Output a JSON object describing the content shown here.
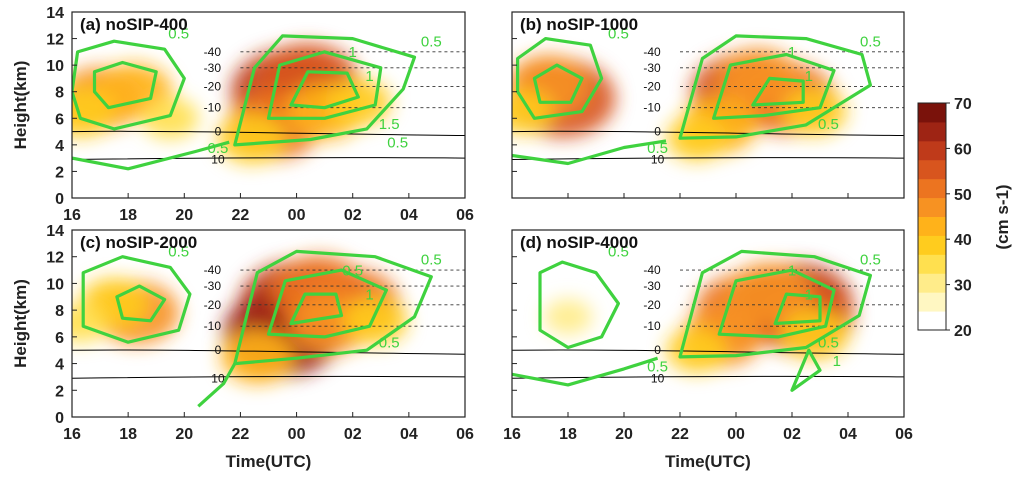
{
  "figure": {
    "colorbar": {
      "ticks": [
        "70",
        "60",
        "50",
        "40",
        "30",
        "20"
      ],
      "unit_label": "(cm s-1)",
      "colors": [
        "#ffffff",
        "#fff7c2",
        "#ffec8a",
        "#ffe04f",
        "#ffcc1e",
        "#ffb21a",
        "#f79222",
        "#ec7420",
        "#d8551e",
        "#bf3a1a",
        "#9e2414",
        "#7a120b"
      ]
    },
    "contour_color": "#3fd23f",
    "temperature_line_color": "#000000"
  },
  "chart_data": [
    {
      "type": "heatmap",
      "title": "(a) noSIP-400",
      "xlabel": "",
      "ylabel": "Height(km)",
      "xticks": [
        "16",
        "18",
        "20",
        "22",
        "00",
        "02",
        "04",
        "06"
      ],
      "yticks": [
        "0",
        "2",
        "4",
        "6",
        "8",
        "10",
        "12",
        "14"
      ],
      "ylim": [
        0,
        14
      ],
      "temperature_labels": [
        "-40",
        "-30",
        "-20",
        "-10",
        "0",
        "10"
      ],
      "contour_labels": [
        "0.5",
        "0.5",
        "1",
        "1",
        "1.5",
        "0.5",
        "0.5"
      ],
      "blobs": [
        {
          "x": 17.0,
          "y": 7.5,
          "v": 48
        },
        {
          "x": 18.2,
          "y": 8.0,
          "v": 44
        },
        {
          "x": 16.3,
          "y": 6.5,
          "v": 40
        },
        {
          "x": 19.5,
          "y": 6.0,
          "v": 34
        },
        {
          "x": 23.7,
          "y": 8.0,
          "v": 62
        },
        {
          "x": 24.4,
          "y": 8.8,
          "v": 56
        },
        {
          "x": 23.2,
          "y": 5.5,
          "v": 52
        },
        {
          "x": 25.0,
          "y": 6.5,
          "v": 44
        },
        {
          "x": 26.2,
          "y": 7.2,
          "v": 38
        },
        {
          "x": 22.4,
          "y": 4.5,
          "v": 40
        }
      ]
    },
    {
      "type": "heatmap",
      "title": "(b) noSIP-1000",
      "xlabel": "",
      "ylabel": "",
      "xticks": [],
      "yticks": [],
      "ylim": [
        0,
        14
      ],
      "temperature_labels": [
        "-40",
        "-30",
        "-20",
        "-10",
        "0",
        "10"
      ],
      "contour_labels": [
        "0.5",
        "0.5",
        "1",
        "1",
        "0.5",
        "0.5"
      ],
      "blobs": [
        {
          "x": 17.8,
          "y": 7.5,
          "v": 58
        },
        {
          "x": 17.3,
          "y": 8.5,
          "v": 46
        },
        {
          "x": 16.4,
          "y": 6.5,
          "v": 36
        },
        {
          "x": 24.2,
          "y": 8.0,
          "v": 56
        },
        {
          "x": 25.8,
          "y": 7.5,
          "v": 54
        },
        {
          "x": 24.8,
          "y": 9.0,
          "v": 46
        },
        {
          "x": 23.4,
          "y": 5.5,
          "v": 44
        },
        {
          "x": 26.8,
          "y": 6.5,
          "v": 38
        },
        {
          "x": 22.6,
          "y": 4.5,
          "v": 36
        }
      ]
    },
    {
      "type": "heatmap",
      "title": "(c) noSIP-2000",
      "xlabel": "Time(UTC)",
      "ylabel": "Height(km)",
      "xticks": [
        "16",
        "18",
        "20",
        "22",
        "00",
        "02",
        "04",
        "06"
      ],
      "yticks": [
        "0",
        "2",
        "4",
        "6",
        "8",
        "10",
        "12",
        "14"
      ],
      "ylim": [
        0,
        14
      ],
      "temperature_labels": [
        "-40",
        "-30",
        "-20",
        "-10",
        "0",
        "10"
      ],
      "contour_labels": [
        "0.5",
        "0.5",
        "1",
        "0.5",
        "0.5"
      ],
      "blobs": [
        {
          "x": 18.3,
          "y": 7.8,
          "v": 48
        },
        {
          "x": 17.5,
          "y": 8.5,
          "v": 40
        },
        {
          "x": 16.3,
          "y": 7.0,
          "v": 32
        },
        {
          "x": 24.0,
          "y": 8.5,
          "v": 62
        },
        {
          "x": 23.5,
          "y": 6.3,
          "v": 64
        },
        {
          "x": 24.8,
          "y": 9.5,
          "v": 52
        },
        {
          "x": 26.0,
          "y": 8.5,
          "v": 52
        },
        {
          "x": 25.2,
          "y": 7.0,
          "v": 46
        },
        {
          "x": 26.8,
          "y": 7.2,
          "v": 38
        },
        {
          "x": 22.6,
          "y": 4.5,
          "v": 42
        }
      ]
    },
    {
      "type": "heatmap",
      "title": "(d) noSIP-4000",
      "xlabel": "Time(UTC)",
      "ylabel": "",
      "xticks": [
        "16",
        "18",
        "20",
        "22",
        "00",
        "02",
        "04",
        "06"
      ],
      "yticks": [],
      "ylim": [
        0,
        14
      ],
      "temperature_labels": [
        "-40",
        "-30",
        "-20",
        "-10",
        "0",
        "10"
      ],
      "contour_labels": [
        "0.5",
        "0.5",
        "1",
        "1",
        "0.5",
        "0.5",
        "1"
      ],
      "blobs": [
        {
          "x": 18.0,
          "y": 7.5,
          "v": 30
        },
        {
          "x": 24.3,
          "y": 8.0,
          "v": 54
        },
        {
          "x": 26.2,
          "y": 8.5,
          "v": 60
        },
        {
          "x": 26.4,
          "y": 7.5,
          "v": 56
        },
        {
          "x": 25.2,
          "y": 9.2,
          "v": 48
        },
        {
          "x": 23.5,
          "y": 6.0,
          "v": 46
        },
        {
          "x": 26.8,
          "y": 6.2,
          "v": 40
        },
        {
          "x": 22.6,
          "y": 5.0,
          "v": 36
        }
      ]
    }
  ]
}
